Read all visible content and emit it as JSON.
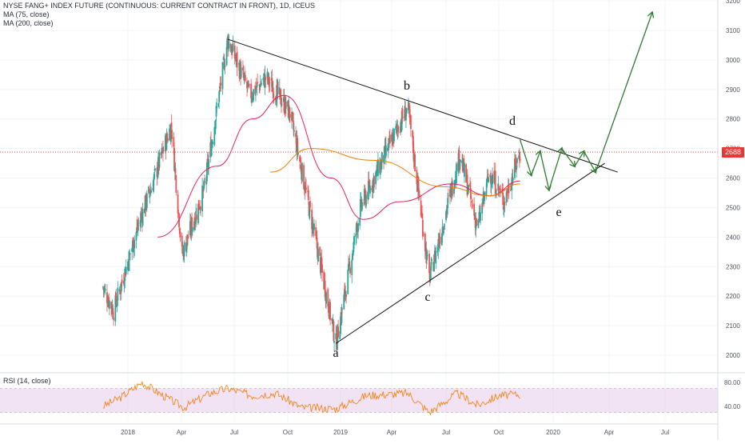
{
  "legend": {
    "title": "NYSE FANG+ INDEX FUTURE (CONTINUOUS: CURRENT CONTRACT IN FRONT), 1D, ICEUS",
    "ma1": "MA (75, close)",
    "ma2": "MA (200, close)",
    "rsi": "RSI (14, close)"
  },
  "price_tag": "2688",
  "colors": {
    "up": "#26a69a",
    "down": "#ef5350",
    "ma75": "#e91e63",
    "ma200": "#f57c00",
    "projection": "#2e7d32",
    "trendline": "#111111",
    "rsi_line": "#f57c00",
    "rsi_band": "#e1bee7",
    "current_price": "#e53935"
  },
  "chart_data": [
    {
      "type": "candlestick",
      "y_axis_ticks": [
        "3200",
        "3100",
        "3000",
        "2900",
        "2800",
        "2700",
        "2600",
        "2500",
        "2400",
        "2300",
        "2200",
        "2100",
        "2000"
      ],
      "ylim": [
        1950,
        3200
      ],
      "x_axis_ticks": [
        "2018",
        "Apr",
        "Jul",
        "Oct",
        "2019",
        "Apr",
        "Jul",
        "Oct",
        "2020",
        "Apr",
        "Jul"
      ],
      "current_price": 2688,
      "wave_labels": [
        "a",
        "b",
        "c",
        "d",
        "e"
      ],
      "ohlc_keypoints": [
        {
          "date": "2017-11-20",
          "close": 2230
        },
        {
          "date": "2017-12-08",
          "close": 2150
        },
        {
          "date": "2018-01-20",
          "close": 2450
        },
        {
          "date": "2018-02-08",
          "close": 2560
        },
        {
          "date": "2018-03-15",
          "close": 2780
        },
        {
          "date": "2018-04-02",
          "close": 2340
        },
        {
          "date": "2018-05-10",
          "close": 2560
        },
        {
          "date": "2018-06-20",
          "close": 3070
        },
        {
          "date": "2018-07-28",
          "close": 2880
        },
        {
          "date": "2018-08-25",
          "close": 2940
        },
        {
          "date": "2018-10-05",
          "close": 2820
        },
        {
          "date": "2018-10-30",
          "close": 2580
        },
        {
          "date": "2018-12-24",
          "close": 2040
        },
        {
          "date": "2019-02-05",
          "close": 2500
        },
        {
          "date": "2019-04-28",
          "close": 2840
        },
        {
          "date": "2019-06-03",
          "close": 2260
        },
        {
          "date": "2019-07-25",
          "close": 2680
        },
        {
          "date": "2019-08-25",
          "close": 2430
        },
        {
          "date": "2019-09-15",
          "close": 2620
        },
        {
          "date": "2019-10-10",
          "close": 2520
        },
        {
          "date": "2019-11-06",
          "close": 2688
        }
      ],
      "ma75_path": [
        {
          "date": "2018-02-20",
          "value": 2400
        },
        {
          "date": "2018-06-01",
          "value": 2640
        },
        {
          "date": "2018-08-01",
          "value": 2800
        },
        {
          "date": "2018-09-25",
          "value": 2880
        },
        {
          "date": "2018-12-15",
          "value": 2600
        },
        {
          "date": "2019-02-10",
          "value": 2460
        },
        {
          "date": "2019-04-15",
          "value": 2520
        },
        {
          "date": "2019-07-10",
          "value": 2580
        },
        {
          "date": "2019-09-15",
          "value": 2540
        },
        {
          "date": "2019-11-06",
          "value": 2590
        }
      ],
      "ma200_path": [
        {
          "date": "2018-09-01",
          "value": 2620
        },
        {
          "date": "2018-11-10",
          "value": 2700
        },
        {
          "date": "2019-03-01",
          "value": 2660
        },
        {
          "date": "2019-07-01",
          "value": 2570
        },
        {
          "date": "2019-09-15",
          "value": 2540
        },
        {
          "date": "2019-11-06",
          "value": 2580
        }
      ],
      "trendlines": [
        {
          "name": "upper",
          "from": {
            "date": "2018-06-20",
            "value": 3070
          },
          "to": {
            "date": "2020-04-15",
            "value": 2620
          }
        },
        {
          "name": "lower",
          "from": {
            "date": "2018-12-24",
            "value": 2040
          },
          "to": {
            "date": "2020-03-25",
            "value": 2650
          }
        }
      ],
      "projection_path": [
        {
          "date": "2019-11-06",
          "value": 2730
        },
        {
          "date": "2019-11-25",
          "value": 2610
        },
        {
          "date": "2019-12-10",
          "value": 2690
        },
        {
          "date": "2019-12-25",
          "value": 2560
        },
        {
          "date": "2020-01-15",
          "value": 2700
        },
        {
          "date": "2020-02-05",
          "value": 2640
        },
        {
          "date": "2020-02-20",
          "value": 2690
        },
        {
          "date": "2020-03-10",
          "value": 2620
        },
        {
          "date": "2020-06-10",
          "value": 3160
        }
      ]
    },
    {
      "type": "line",
      "name": "RSI (14, close)",
      "y_axis_ticks": [
        "80.00",
        "40.00"
      ],
      "band": [
        30,
        70
      ],
      "ylim": [
        20,
        90
      ],
      "x": [
        "2017-11-20",
        "2017-12-20",
        "2018-01-25",
        "2018-03-01",
        "2018-04-05",
        "2018-05-20",
        "2018-06-20",
        "2018-08-01",
        "2018-09-10",
        "2018-10-25",
        "2018-12-24",
        "2019-02-15",
        "2019-04-28",
        "2019-06-03",
        "2019-07-20",
        "2019-08-25",
        "2019-10-01",
        "2019-11-06"
      ],
      "values": [
        40,
        55,
        80,
        58,
        38,
        62,
        70,
        58,
        62,
        38,
        36,
        58,
        62,
        30,
        62,
        42,
        58,
        60
      ]
    }
  ]
}
